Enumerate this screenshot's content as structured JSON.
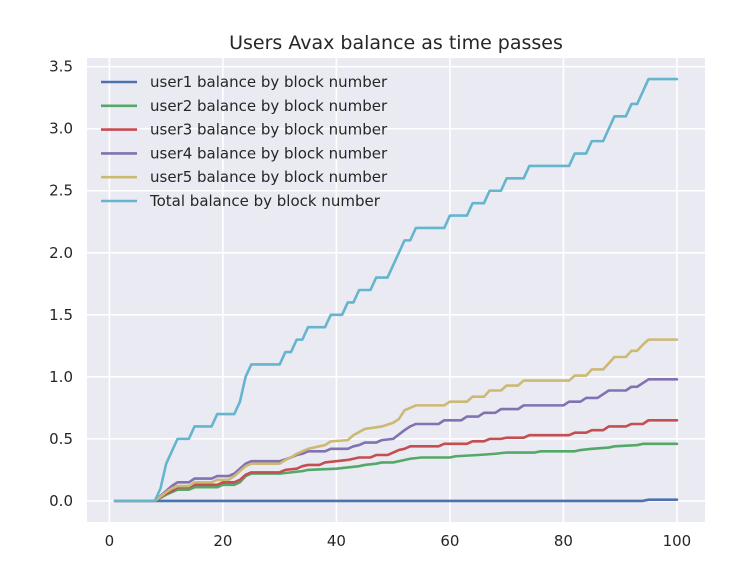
{
  "chart_data": {
    "type": "line",
    "title": "Users Avax balance as time passes",
    "xlabel": "",
    "ylabel": "",
    "xlim": [
      -3.95,
      104.95
    ],
    "ylim": [
      -0.17,
      3.57
    ],
    "xticks": [
      0,
      20,
      40,
      60,
      80,
      100
    ],
    "yticks": [
      0.0,
      0.5,
      1.0,
      1.5,
      2.0,
      2.5,
      3.0,
      3.5
    ],
    "xtick_labels": [
      "0",
      "20",
      "40",
      "60",
      "80",
      "100"
    ],
    "ytick_labels": [
      "0.0",
      "0.5",
      "1.0",
      "1.5",
      "2.0",
      "2.5",
      "3.0",
      "3.5"
    ],
    "grid": true,
    "legend_position": "top-left",
    "background": "#eaeaf2",
    "series": [
      {
        "name": "user1 balance by block number",
        "color": "#4c72b0",
        "points": [
          [
            1,
            0
          ],
          [
            94,
            0
          ],
          [
            95,
            0.01
          ],
          [
            100,
            0.01
          ]
        ]
      },
      {
        "name": "user2 balance by block number",
        "color": "#55a868",
        "points": [
          [
            1,
            0
          ],
          [
            8,
            0
          ],
          [
            10,
            0.05
          ],
          [
            11,
            0.07
          ],
          [
            12,
            0.09
          ],
          [
            14,
            0.09
          ],
          [
            15,
            0.11
          ],
          [
            19,
            0.11
          ],
          [
            20,
            0.13
          ],
          [
            22,
            0.13
          ],
          [
            23,
            0.15
          ],
          [
            24,
            0.2
          ],
          [
            25,
            0.22
          ],
          [
            30,
            0.22
          ],
          [
            32,
            0.23
          ],
          [
            34,
            0.24
          ],
          [
            35,
            0.25
          ],
          [
            40,
            0.26
          ],
          [
            42,
            0.27
          ],
          [
            44,
            0.28
          ],
          [
            45,
            0.29
          ],
          [
            47,
            0.3
          ],
          [
            48,
            0.31
          ],
          [
            50,
            0.31
          ],
          [
            52,
            0.33
          ],
          [
            53,
            0.34
          ],
          [
            55,
            0.35
          ],
          [
            60,
            0.35
          ],
          [
            61,
            0.36
          ],
          [
            65,
            0.37
          ],
          [
            68,
            0.38
          ],
          [
            70,
            0.39
          ],
          [
            75,
            0.39
          ],
          [
            76,
            0.4
          ],
          [
            82,
            0.4
          ],
          [
            83,
            0.41
          ],
          [
            85,
            0.42
          ],
          [
            88,
            0.43
          ],
          [
            89,
            0.44
          ],
          [
            93,
            0.45
          ],
          [
            94,
            0.46
          ],
          [
            100,
            0.46
          ]
        ]
      },
      {
        "name": "user3 balance by block number",
        "color": "#c44e52",
        "points": [
          [
            1,
            0
          ],
          [
            8,
            0
          ],
          [
            10,
            0.06
          ],
          [
            11,
            0.08
          ],
          [
            12,
            0.11
          ],
          [
            14,
            0.11
          ],
          [
            15,
            0.13
          ],
          [
            19,
            0.13
          ],
          [
            20,
            0.15
          ],
          [
            22,
            0.15
          ],
          [
            23,
            0.17
          ],
          [
            24,
            0.21
          ],
          [
            25,
            0.23
          ],
          [
            30,
            0.23
          ],
          [
            31,
            0.25
          ],
          [
            33,
            0.26
          ],
          [
            34,
            0.28
          ],
          [
            35,
            0.29
          ],
          [
            37,
            0.29
          ],
          [
            38,
            0.31
          ],
          [
            40,
            0.32
          ],
          [
            42,
            0.33
          ],
          [
            43,
            0.34
          ],
          [
            44,
            0.35
          ],
          [
            46,
            0.35
          ],
          [
            47,
            0.37
          ],
          [
            49,
            0.37
          ],
          [
            50,
            0.39
          ],
          [
            51,
            0.41
          ],
          [
            52,
            0.42
          ],
          [
            53,
            0.44
          ],
          [
            58,
            0.44
          ],
          [
            59,
            0.46
          ],
          [
            63,
            0.46
          ],
          [
            64,
            0.48
          ],
          [
            66,
            0.48
          ],
          [
            67,
            0.5
          ],
          [
            69,
            0.5
          ],
          [
            70,
            0.51
          ],
          [
            73,
            0.51
          ],
          [
            74,
            0.53
          ],
          [
            81,
            0.53
          ],
          [
            82,
            0.55
          ],
          [
            84,
            0.55
          ],
          [
            85,
            0.57
          ],
          [
            87,
            0.57
          ],
          [
            88,
            0.6
          ],
          [
            91,
            0.6
          ],
          [
            92,
            0.62
          ],
          [
            94,
            0.62
          ],
          [
            95,
            0.65
          ],
          [
            100,
            0.65
          ]
        ]
      },
      {
        "name": "user4 balance by block number",
        "color": "#8172b2",
        "points": [
          [
            1,
            0
          ],
          [
            8,
            0
          ],
          [
            10,
            0.08
          ],
          [
            11,
            0.12
          ],
          [
            12,
            0.15
          ],
          [
            14,
            0.15
          ],
          [
            15,
            0.18
          ],
          [
            18,
            0.18
          ],
          [
            19,
            0.2
          ],
          [
            21,
            0.2
          ],
          [
            22,
            0.22
          ],
          [
            24,
            0.3
          ],
          [
            25,
            0.32
          ],
          [
            30,
            0.32
          ],
          [
            32,
            0.35
          ],
          [
            33,
            0.37
          ],
          [
            34,
            0.38
          ],
          [
            35,
            0.4
          ],
          [
            38,
            0.4
          ],
          [
            39,
            0.42
          ],
          [
            42,
            0.42
          ],
          [
            43,
            0.44
          ],
          [
            44,
            0.45
          ],
          [
            45,
            0.47
          ],
          [
            47,
            0.47
          ],
          [
            48,
            0.49
          ],
          [
            50,
            0.5
          ],
          [
            52,
            0.57
          ],
          [
            53,
            0.6
          ],
          [
            54,
            0.62
          ],
          [
            58,
            0.62
          ],
          [
            59,
            0.65
          ],
          [
            62,
            0.65
          ],
          [
            63,
            0.68
          ],
          [
            65,
            0.68
          ],
          [
            66,
            0.71
          ],
          [
            68,
            0.71
          ],
          [
            69,
            0.74
          ],
          [
            72,
            0.74
          ],
          [
            73,
            0.77
          ],
          [
            80,
            0.77
          ],
          [
            81,
            0.8
          ],
          [
            83,
            0.8
          ],
          [
            84,
            0.83
          ],
          [
            86,
            0.83
          ],
          [
            87,
            0.86
          ],
          [
            88,
            0.89
          ],
          [
            91,
            0.89
          ],
          [
            92,
            0.92
          ],
          [
            93,
            0.92
          ],
          [
            94,
            0.95
          ],
          [
            95,
            0.98
          ],
          [
            100,
            0.98
          ]
        ]
      },
      {
        "name": "user5 balance by block number",
        "color": "#ccb974",
        "points": [
          [
            1,
            0
          ],
          [
            8,
            0
          ],
          [
            10,
            0.07
          ],
          [
            11,
            0.1
          ],
          [
            12,
            0.12
          ],
          [
            14,
            0.12
          ],
          [
            15,
            0.15
          ],
          [
            18,
            0.15
          ],
          [
            19,
            0.17
          ],
          [
            21,
            0.17
          ],
          [
            22,
            0.2
          ],
          [
            24,
            0.28
          ],
          [
            25,
            0.3
          ],
          [
            30,
            0.3
          ],
          [
            31,
            0.33
          ],
          [
            32,
            0.35
          ],
          [
            33,
            0.38
          ],
          [
            34,
            0.4
          ],
          [
            35,
            0.42
          ],
          [
            38,
            0.45
          ],
          [
            39,
            0.48
          ],
          [
            42,
            0.49
          ],
          [
            43,
            0.53
          ],
          [
            45,
            0.58
          ],
          [
            48,
            0.6
          ],
          [
            50,
            0.63
          ],
          [
            51,
            0.66
          ],
          [
            52,
            0.73
          ],
          [
            54,
            0.77
          ],
          [
            59,
            0.77
          ],
          [
            60,
            0.8
          ],
          [
            63,
            0.8
          ],
          [
            64,
            0.84
          ],
          [
            66,
            0.84
          ],
          [
            67,
            0.89
          ],
          [
            69,
            0.89
          ],
          [
            70,
            0.93
          ],
          [
            72,
            0.93
          ],
          [
            73,
            0.97
          ],
          [
            81,
            0.97
          ],
          [
            82,
            1.01
          ],
          [
            84,
            1.01
          ],
          [
            85,
            1.06
          ],
          [
            87,
            1.06
          ],
          [
            88,
            1.11
          ],
          [
            89,
            1.16
          ],
          [
            91,
            1.16
          ],
          [
            92,
            1.21
          ],
          [
            93,
            1.21
          ],
          [
            94,
            1.26
          ],
          [
            95,
            1.3
          ],
          [
            100,
            1.3
          ]
        ]
      },
      {
        "name": "Total balance by block number",
        "color": "#64b5cd",
        "points": [
          [
            1,
            0
          ],
          [
            8,
            0
          ],
          [
            9,
            0.1
          ],
          [
            10,
            0.3
          ],
          [
            11,
            0.4
          ],
          [
            12,
            0.5
          ],
          [
            14,
            0.5
          ],
          [
            15,
            0.6
          ],
          [
            18,
            0.6
          ],
          [
            19,
            0.7
          ],
          [
            22,
            0.7
          ],
          [
            23,
            0.8
          ],
          [
            24,
            1.0
          ],
          [
            25,
            1.1
          ],
          [
            30,
            1.1
          ],
          [
            31,
            1.2
          ],
          [
            32,
            1.2
          ],
          [
            33,
            1.3
          ],
          [
            34,
            1.3
          ],
          [
            35,
            1.4
          ],
          [
            38,
            1.4
          ],
          [
            39,
            1.5
          ],
          [
            41,
            1.5
          ],
          [
            42,
            1.6
          ],
          [
            43,
            1.6
          ],
          [
            44,
            1.7
          ],
          [
            46,
            1.7
          ],
          [
            47,
            1.8
          ],
          [
            49,
            1.8
          ],
          [
            50,
            1.9
          ],
          [
            51,
            2.0
          ],
          [
            52,
            2.1
          ],
          [
            53,
            2.1
          ],
          [
            54,
            2.2
          ],
          [
            59,
            2.2
          ],
          [
            60,
            2.3
          ],
          [
            63,
            2.3
          ],
          [
            64,
            2.4
          ],
          [
            66,
            2.4
          ],
          [
            67,
            2.5
          ],
          [
            69,
            2.5
          ],
          [
            70,
            2.6
          ],
          [
            73,
            2.6
          ],
          [
            74,
            2.7
          ],
          [
            81,
            2.7
          ],
          [
            82,
            2.8
          ],
          [
            84,
            2.8
          ],
          [
            85,
            2.9
          ],
          [
            87,
            2.9
          ],
          [
            88,
            3.0
          ],
          [
            89,
            3.1
          ],
          [
            91,
            3.1
          ],
          [
            92,
            3.2
          ],
          [
            93,
            3.2
          ],
          [
            94,
            3.3
          ],
          [
            95,
            3.4
          ],
          [
            100,
            3.4
          ]
        ]
      }
    ]
  }
}
